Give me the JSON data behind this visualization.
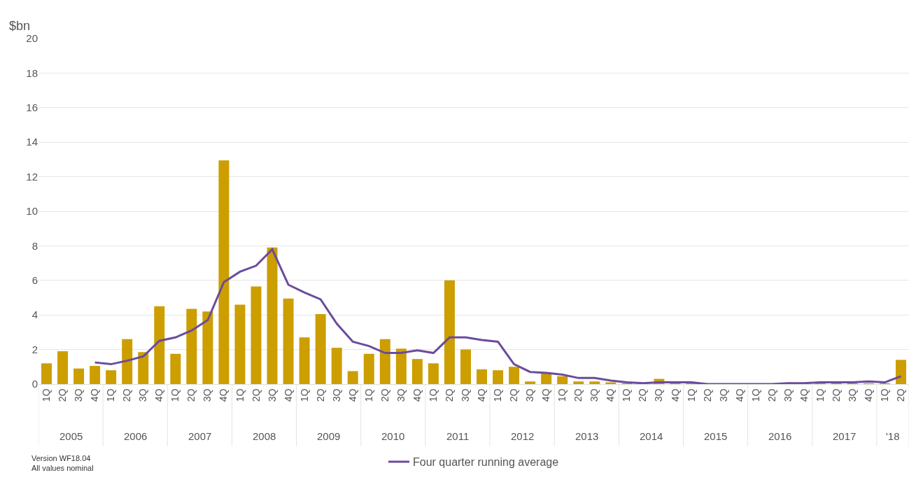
{
  "chart_data": {
    "type": "bar",
    "ylabel": "$bn",
    "categories": [
      "1Q",
      "2Q",
      "3Q",
      "4Q",
      "1Q",
      "2Q",
      "3Q",
      "4Q",
      "1Q",
      "2Q",
      "3Q",
      "4Q",
      "1Q",
      "2Q",
      "3Q",
      "4Q",
      "1Q",
      "2Q",
      "3Q",
      "4Q",
      "1Q",
      "2Q",
      "3Q",
      "4Q",
      "1Q",
      "2Q",
      "3Q",
      "4Q",
      "1Q",
      "2Q",
      "3Q",
      "4Q",
      "1Q",
      "2Q",
      "3Q",
      "4Q",
      "1Q",
      "2Q",
      "3Q",
      "4Q",
      "1Q",
      "2Q",
      "3Q",
      "4Q",
      "1Q",
      "2Q",
      "3Q",
      "4Q",
      "1Q",
      "2Q",
      "3Q",
      "4Q",
      "1Q",
      "2Q"
    ],
    "series": [
      {
        "color": "#cc9e00",
        "values": [
          1.2,
          1.9,
          0.9,
          1.05,
          0.8,
          2.6,
          1.85,
          4.5,
          1.75,
          4.35,
          4.2,
          12.95,
          4.6,
          5.65,
          7.9,
          4.95,
          2.7,
          4.05,
          2.1,
          0.75,
          1.75,
          2.6,
          2.05,
          1.45,
          1.2,
          6.0,
          2.0,
          0.85,
          0.8,
          1.0,
          0.15,
          0.65,
          0.45,
          0.15,
          0.15,
          0.1,
          0.05,
          null,
          0.3,
          0.05,
          0.05,
          0,
          0,
          0,
          null,
          null,
          null,
          null,
          0.05,
          0.05,
          0.05,
          0.05,
          0.05,
          1.4
        ]
      },
      {
        "type": "line",
        "name": "Four quarter running average",
        "color": "#6a4c9c",
        "values": [
          null,
          null,
          null,
          1.25,
          1.15,
          1.35,
          1.6,
          2.5,
          2.7,
          3.1,
          3.7,
          5.9,
          6.5,
          6.85,
          7.8,
          5.75,
          5.3,
          4.9,
          3.5,
          2.45,
          2.2,
          1.8,
          1.8,
          1.95,
          1.8,
          2.7,
          2.7,
          2.55,
          2.45,
          1.15,
          0.7,
          0.65,
          0.55,
          0.35,
          0.35,
          0.2,
          0.1,
          0.05,
          0.1,
          0.1,
          0.1,
          0,
          0,
          0,
          0,
          0,
          0.05,
          0.05,
          0.1,
          0.1,
          0.1,
          0.15,
          0.1,
          0.45
        ]
      }
    ],
    "ylim": [
      0,
      20
    ],
    "yticks": [
      0,
      2,
      4,
      6,
      8,
      10,
      12,
      14,
      16,
      18,
      20
    ],
    "grid": "y",
    "legend": "bottom",
    "marker": "none",
    "line_style": "solid",
    "annotations": [
      "2005",
      "2006",
      "2007",
      "2008",
      "2009",
      "2010",
      "2011",
      "2012",
      "2013",
      "2014",
      "2015",
      "2016",
      "2017",
      "'18",
      "Version WF18.04",
      "All values nominal"
    ]
  }
}
